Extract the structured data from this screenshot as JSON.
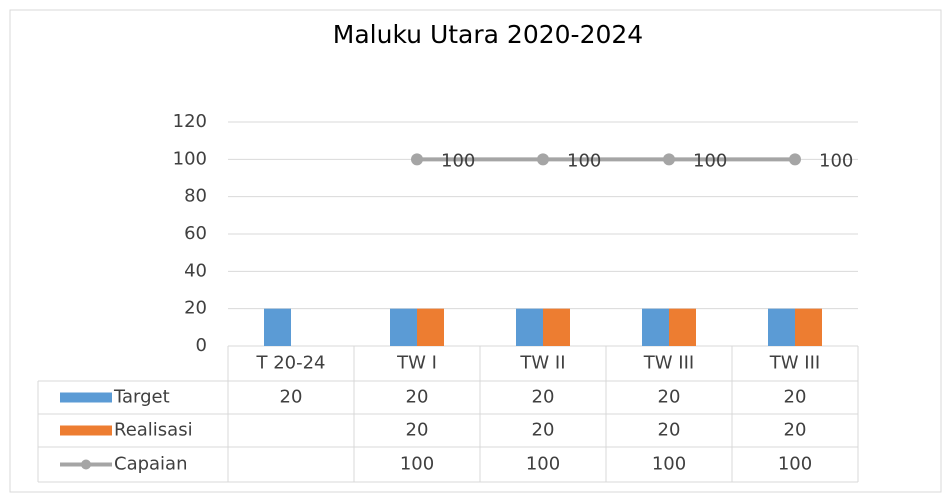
{
  "chart_data": {
    "type": "bar",
    "title": "Maluku Utara 2020-2024",
    "categories": [
      "T 20-24",
      "TW I",
      "TW II",
      "TW III",
      "TW III"
    ],
    "series": [
      {
        "name": "Target",
        "color": "#5b9bd5",
        "type": "bar",
        "values": [
          20,
          20,
          20,
          20,
          20
        ]
      },
      {
        "name": "Realisasi",
        "color": "#ed7d31",
        "type": "bar",
        "values": [
          null,
          20,
          20,
          20,
          20
        ]
      },
      {
        "name": "Capaian",
        "color": "#a5a5a5",
        "type": "line",
        "values": [
          null,
          100,
          100,
          100,
          100
        ]
      }
    ],
    "ylim": [
      0,
      120
    ],
    "yticks": [
      0,
      20,
      40,
      60,
      80,
      100,
      120
    ],
    "grid": true,
    "data_table": true
  }
}
